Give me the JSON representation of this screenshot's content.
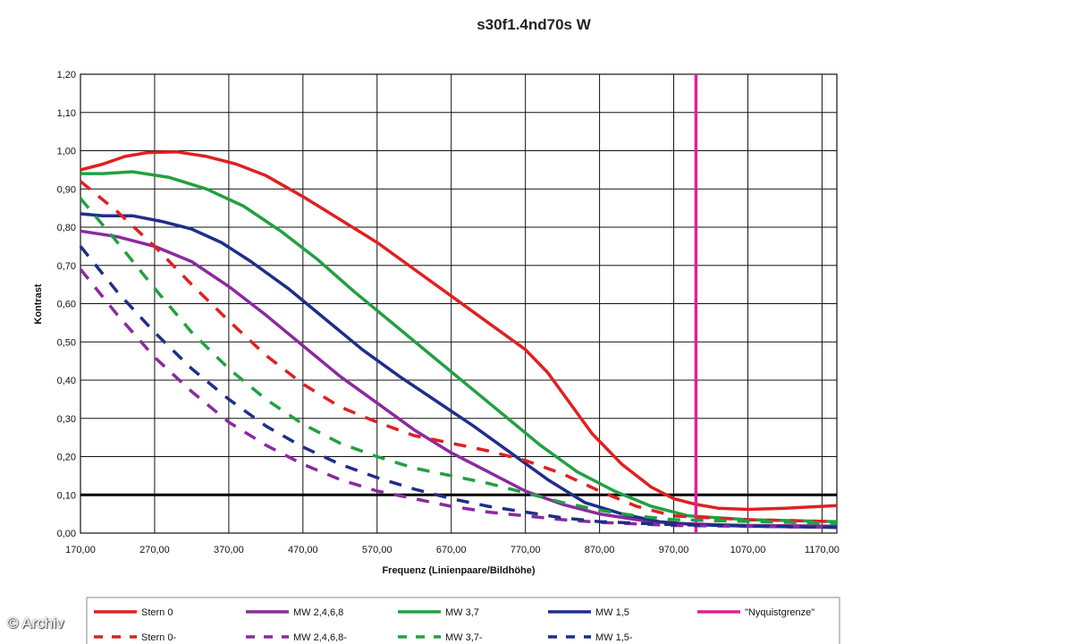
{
  "watermark": "© Archiv",
  "chart_data": {
    "type": "line",
    "title": "s30f1.4nd70s W",
    "xlabel": "Frequenz (Linienpaare/Bildhöhe)",
    "ylabel": "Kontrast",
    "xlim": [
      170,
      1190
    ],
    "ylim": [
      0,
      1.2
    ],
    "xticks": [
      170,
      270,
      370,
      470,
      570,
      670,
      770,
      870,
      970,
      1070,
      1170
    ],
    "xtick_labels": [
      "170,00",
      "270,00",
      "370,00",
      "470,00",
      "570,00",
      "670,00",
      "770,00",
      "870,00",
      "970,00",
      "1070,00",
      "1170,00"
    ],
    "yticks": [
      0,
      0.1,
      0.2,
      0.3,
      0.4,
      0.5,
      0.6,
      0.7,
      0.8,
      0.9,
      1.0,
      1.1,
      1.2
    ],
    "ytick_labels": [
      "0,00",
      "0,10",
      "0,20",
      "0,30",
      "0,40",
      "0,50",
      "0,60",
      "0,70",
      "0,80",
      "0,90",
      "1,00",
      "1,10",
      "1,20"
    ],
    "grid": true,
    "legend_position": "bottom",
    "reference_line": {
      "y": 0.1,
      "color": "#000000"
    },
    "series": [
      {
        "name": "Stern 0",
        "color": "#e02020",
        "dash": false,
        "points": [
          [
            170,
            0.95
          ],
          [
            200,
            0.965
          ],
          [
            230,
            0.985
          ],
          [
            260,
            0.995
          ],
          [
            300,
            0.997
          ],
          [
            340,
            0.985
          ],
          [
            380,
            0.965
          ],
          [
            420,
            0.935
          ],
          [
            470,
            0.88
          ],
          [
            520,
            0.82
          ],
          [
            570,
            0.76
          ],
          [
            620,
            0.69
          ],
          [
            670,
            0.62
          ],
          [
            720,
            0.55
          ],
          [
            770,
            0.48
          ],
          [
            800,
            0.42
          ],
          [
            830,
            0.34
          ],
          [
            860,
            0.26
          ],
          [
            900,
            0.18
          ],
          [
            940,
            0.12
          ],
          [
            970,
            0.09
          ],
          [
            1000,
            0.075
          ],
          [
            1030,
            0.065
          ],
          [
            1070,
            0.062
          ],
          [
            1120,
            0.065
          ],
          [
            1170,
            0.07
          ],
          [
            1190,
            0.072
          ]
        ]
      },
      {
        "name": "MW 2,4,6,8",
        "color": "#8a2a9e",
        "dash": false,
        "points": [
          [
            170,
            0.79
          ],
          [
            220,
            0.775
          ],
          [
            270,
            0.75
          ],
          [
            320,
            0.71
          ],
          [
            370,
            0.645
          ],
          [
            420,
            0.57
          ],
          [
            470,
            0.49
          ],
          [
            520,
            0.41
          ],
          [
            570,
            0.34
          ],
          [
            620,
            0.27
          ],
          [
            670,
            0.21
          ],
          [
            720,
            0.16
          ],
          [
            770,
            0.11
          ],
          [
            820,
            0.075
          ],
          [
            870,
            0.05
          ],
          [
            920,
            0.035
          ],
          [
            970,
            0.025
          ],
          [
            1070,
            0.02
          ],
          [
            1190,
            0.018
          ]
        ]
      },
      {
        "name": "MW 3,7",
        "color": "#22a040",
        "dash": false,
        "points": [
          [
            170,
            0.94
          ],
          [
            200,
            0.94
          ],
          [
            240,
            0.945
          ],
          [
            290,
            0.93
          ],
          [
            340,
            0.9
          ],
          [
            390,
            0.855
          ],
          [
            440,
            0.79
          ],
          [
            490,
            0.715
          ],
          [
            540,
            0.63
          ],
          [
            590,
            0.55
          ],
          [
            640,
            0.47
          ],
          [
            690,
            0.39
          ],
          [
            740,
            0.31
          ],
          [
            790,
            0.23
          ],
          [
            840,
            0.16
          ],
          [
            890,
            0.11
          ],
          [
            940,
            0.07
          ],
          [
            990,
            0.045
          ],
          [
            1070,
            0.035
          ],
          [
            1190,
            0.03
          ]
        ]
      },
      {
        "name": "MW 1,5",
        "color": "#1f2e8a",
        "dash": false,
        "points": [
          [
            170,
            0.835
          ],
          [
            200,
            0.83
          ],
          [
            240,
            0.83
          ],
          [
            280,
            0.815
          ],
          [
            320,
            0.795
          ],
          [
            360,
            0.76
          ],
          [
            400,
            0.71
          ],
          [
            450,
            0.64
          ],
          [
            500,
            0.56
          ],
          [
            550,
            0.48
          ],
          [
            600,
            0.41
          ],
          [
            650,
            0.345
          ],
          [
            700,
            0.28
          ],
          [
            750,
            0.21
          ],
          [
            800,
            0.14
          ],
          [
            850,
            0.08
          ],
          [
            900,
            0.05
          ],
          [
            950,
            0.03
          ],
          [
            1000,
            0.022
          ],
          [
            1070,
            0.018
          ],
          [
            1190,
            0.015
          ]
        ]
      },
      {
        "name": "\"Nyquistgrenze\"",
        "color": "#e0209a",
        "dash": false,
        "points": [
          [
            1000,
            0
          ],
          [
            1000,
            1.2
          ]
        ]
      },
      {
        "name": "Stern 0-",
        "color": "#e02020",
        "dash": true,
        "points": [
          [
            170,
            0.92
          ],
          [
            220,
            0.84
          ],
          [
            270,
            0.75
          ],
          [
            320,
            0.65
          ],
          [
            370,
            0.555
          ],
          [
            420,
            0.465
          ],
          [
            470,
            0.39
          ],
          [
            520,
            0.33
          ],
          [
            570,
            0.29
          ],
          [
            620,
            0.255
          ],
          [
            670,
            0.235
          ],
          [
            720,
            0.215
          ],
          [
            770,
            0.19
          ],
          [
            820,
            0.155
          ],
          [
            870,
            0.11
          ],
          [
            920,
            0.07
          ],
          [
            970,
            0.045
          ],
          [
            1070,
            0.035
          ],
          [
            1190,
            0.03
          ]
        ]
      },
      {
        "name": "MW 2,4,6,8-",
        "color": "#8a2a9e",
        "dash": true,
        "points": [
          [
            170,
            0.69
          ],
          [
            220,
            0.57
          ],
          [
            270,
            0.46
          ],
          [
            320,
            0.37
          ],
          [
            370,
            0.29
          ],
          [
            420,
            0.23
          ],
          [
            470,
            0.18
          ],
          [
            520,
            0.14
          ],
          [
            570,
            0.11
          ],
          [
            620,
            0.09
          ],
          [
            670,
            0.07
          ],
          [
            720,
            0.055
          ],
          [
            770,
            0.045
          ],
          [
            820,
            0.035
          ],
          [
            870,
            0.028
          ],
          [
            970,
            0.02
          ],
          [
            1190,
            0.015
          ]
        ]
      },
      {
        "name": "MW 3,7-",
        "color": "#22a040",
        "dash": true,
        "points": [
          [
            170,
            0.875
          ],
          [
            220,
            0.76
          ],
          [
            270,
            0.64
          ],
          [
            320,
            0.525
          ],
          [
            370,
            0.43
          ],
          [
            420,
            0.35
          ],
          [
            470,
            0.285
          ],
          [
            520,
            0.235
          ],
          [
            570,
            0.2
          ],
          [
            620,
            0.17
          ],
          [
            670,
            0.15
          ],
          [
            720,
            0.13
          ],
          [
            770,
            0.105
          ],
          [
            820,
            0.08
          ],
          [
            870,
            0.06
          ],
          [
            920,
            0.045
          ],
          [
            970,
            0.035
          ],
          [
            1190,
            0.025
          ]
        ]
      },
      {
        "name": "MW 1,5-",
        "color": "#1f2e8a",
        "dash": true,
        "points": [
          [
            170,
            0.75
          ],
          [
            220,
            0.63
          ],
          [
            270,
            0.525
          ],
          [
            320,
            0.43
          ],
          [
            370,
            0.35
          ],
          [
            420,
            0.28
          ],
          [
            470,
            0.225
          ],
          [
            520,
            0.18
          ],
          [
            570,
            0.145
          ],
          [
            620,
            0.115
          ],
          [
            670,
            0.09
          ],
          [
            720,
            0.07
          ],
          [
            770,
            0.055
          ],
          [
            820,
            0.04
          ],
          [
            870,
            0.03
          ],
          [
            970,
            0.022
          ],
          [
            1190,
            0.015
          ]
        ]
      }
    ]
  }
}
